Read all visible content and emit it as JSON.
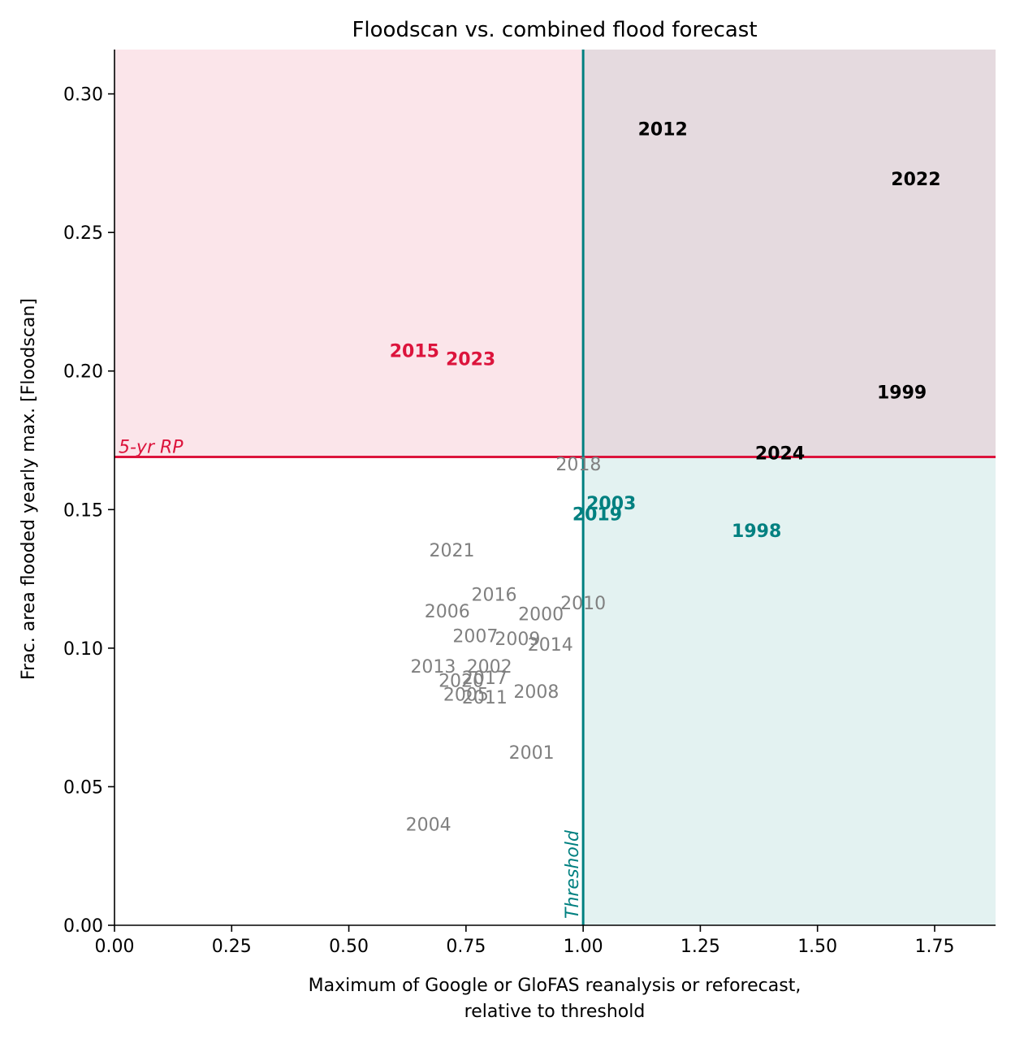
{
  "chart_data": {
    "type": "scatter",
    "title": "Floodscan vs. combined flood forecast",
    "xlabel_lines": [
      "Maximum of Google or GloFAS reanalysis or reforecast,",
      "relative to threshold"
    ],
    "ylabel": "Frac. area flooded yearly max. [Floodscan]",
    "xlim": [
      0,
      1.88
    ],
    "ylim": [
      0,
      0.316
    ],
    "x_ticks": [
      0,
      0.25,
      0.5,
      0.75,
      1.0,
      1.25,
      1.5,
      1.75
    ],
    "x_tick_labels": [
      "0.00",
      "0.25",
      "0.50",
      "0.75",
      "1.00",
      "1.25",
      "1.50",
      "1.75"
    ],
    "y_ticks": [
      0,
      0.05,
      0.1,
      0.15,
      0.2,
      0.25,
      0.3
    ],
    "y_tick_labels": [
      "0.00",
      "0.05",
      "0.10",
      "0.15",
      "0.20",
      "0.25",
      "0.30"
    ],
    "grid": false,
    "threshold": {
      "x": 1.0,
      "label": "Threshold",
      "color": "#008080"
    },
    "return_period": {
      "y": 0.169,
      "label": "5-yr RP",
      "color": "#dc143c"
    },
    "quadrant_colors": {
      "top_left": "#fbe5ea",
      "top_right": "#e5dadf",
      "bottom_right": "#e3f2f1",
      "bottom_left": "#ffffff"
    },
    "category_colors": {
      "both": "#000000",
      "floodscan_only": "#dc143c",
      "forecast_only": "#008080",
      "neither": "#808080"
    },
    "points": [
      {
        "label": "2012",
        "x": 1.17,
        "y": 0.287,
        "category": "both"
      },
      {
        "label": "2022",
        "x": 1.71,
        "y": 0.269,
        "category": "both"
      },
      {
        "label": "1999",
        "x": 1.68,
        "y": 0.192,
        "category": "both"
      },
      {
        "label": "2024",
        "x": 1.42,
        "y": 0.17,
        "category": "both"
      },
      {
        "label": "2015",
        "x": 0.64,
        "y": 0.207,
        "category": "floodscan_only"
      },
      {
        "label": "2023",
        "x": 0.76,
        "y": 0.204,
        "category": "floodscan_only"
      },
      {
        "label": "2003",
        "x": 1.06,
        "y": 0.152,
        "category": "forecast_only"
      },
      {
        "label": "2019",
        "x": 1.03,
        "y": 0.148,
        "category": "forecast_only"
      },
      {
        "label": "1998",
        "x": 1.37,
        "y": 0.142,
        "category": "forecast_only"
      },
      {
        "label": "2018",
        "x": 0.99,
        "y": 0.166,
        "category": "neither"
      },
      {
        "label": "2021",
        "x": 0.72,
        "y": 0.135,
        "category": "neither"
      },
      {
        "label": "2016",
        "x": 0.81,
        "y": 0.119,
        "category": "neither"
      },
      {
        "label": "2006",
        "x": 0.71,
        "y": 0.113,
        "category": "neither"
      },
      {
        "label": "2000",
        "x": 0.91,
        "y": 0.112,
        "category": "neither"
      },
      {
        "label": "2010",
        "x": 1.0,
        "y": 0.116,
        "category": "neither"
      },
      {
        "label": "2007",
        "x": 0.77,
        "y": 0.104,
        "category": "neither"
      },
      {
        "label": "2009",
        "x": 0.86,
        "y": 0.103,
        "category": "neither"
      },
      {
        "label": "2014",
        "x": 0.93,
        "y": 0.101,
        "category": "neither"
      },
      {
        "label": "2013",
        "x": 0.68,
        "y": 0.093,
        "category": "neither"
      },
      {
        "label": "2002",
        "x": 0.8,
        "y": 0.093,
        "category": "neither"
      },
      {
        "label": "2020",
        "x": 0.74,
        "y": 0.088,
        "category": "neither"
      },
      {
        "label": "2017",
        "x": 0.79,
        "y": 0.089,
        "category": "neither"
      },
      {
        "label": "2005",
        "x": 0.75,
        "y": 0.083,
        "category": "neither"
      },
      {
        "label": "2011",
        "x": 0.79,
        "y": 0.082,
        "category": "neither"
      },
      {
        "label": "2008",
        "x": 0.9,
        "y": 0.084,
        "category": "neither"
      },
      {
        "label": "2001",
        "x": 0.89,
        "y": 0.062,
        "category": "neither"
      },
      {
        "label": "2004",
        "x": 0.67,
        "y": 0.036,
        "category": "neither"
      }
    ]
  }
}
